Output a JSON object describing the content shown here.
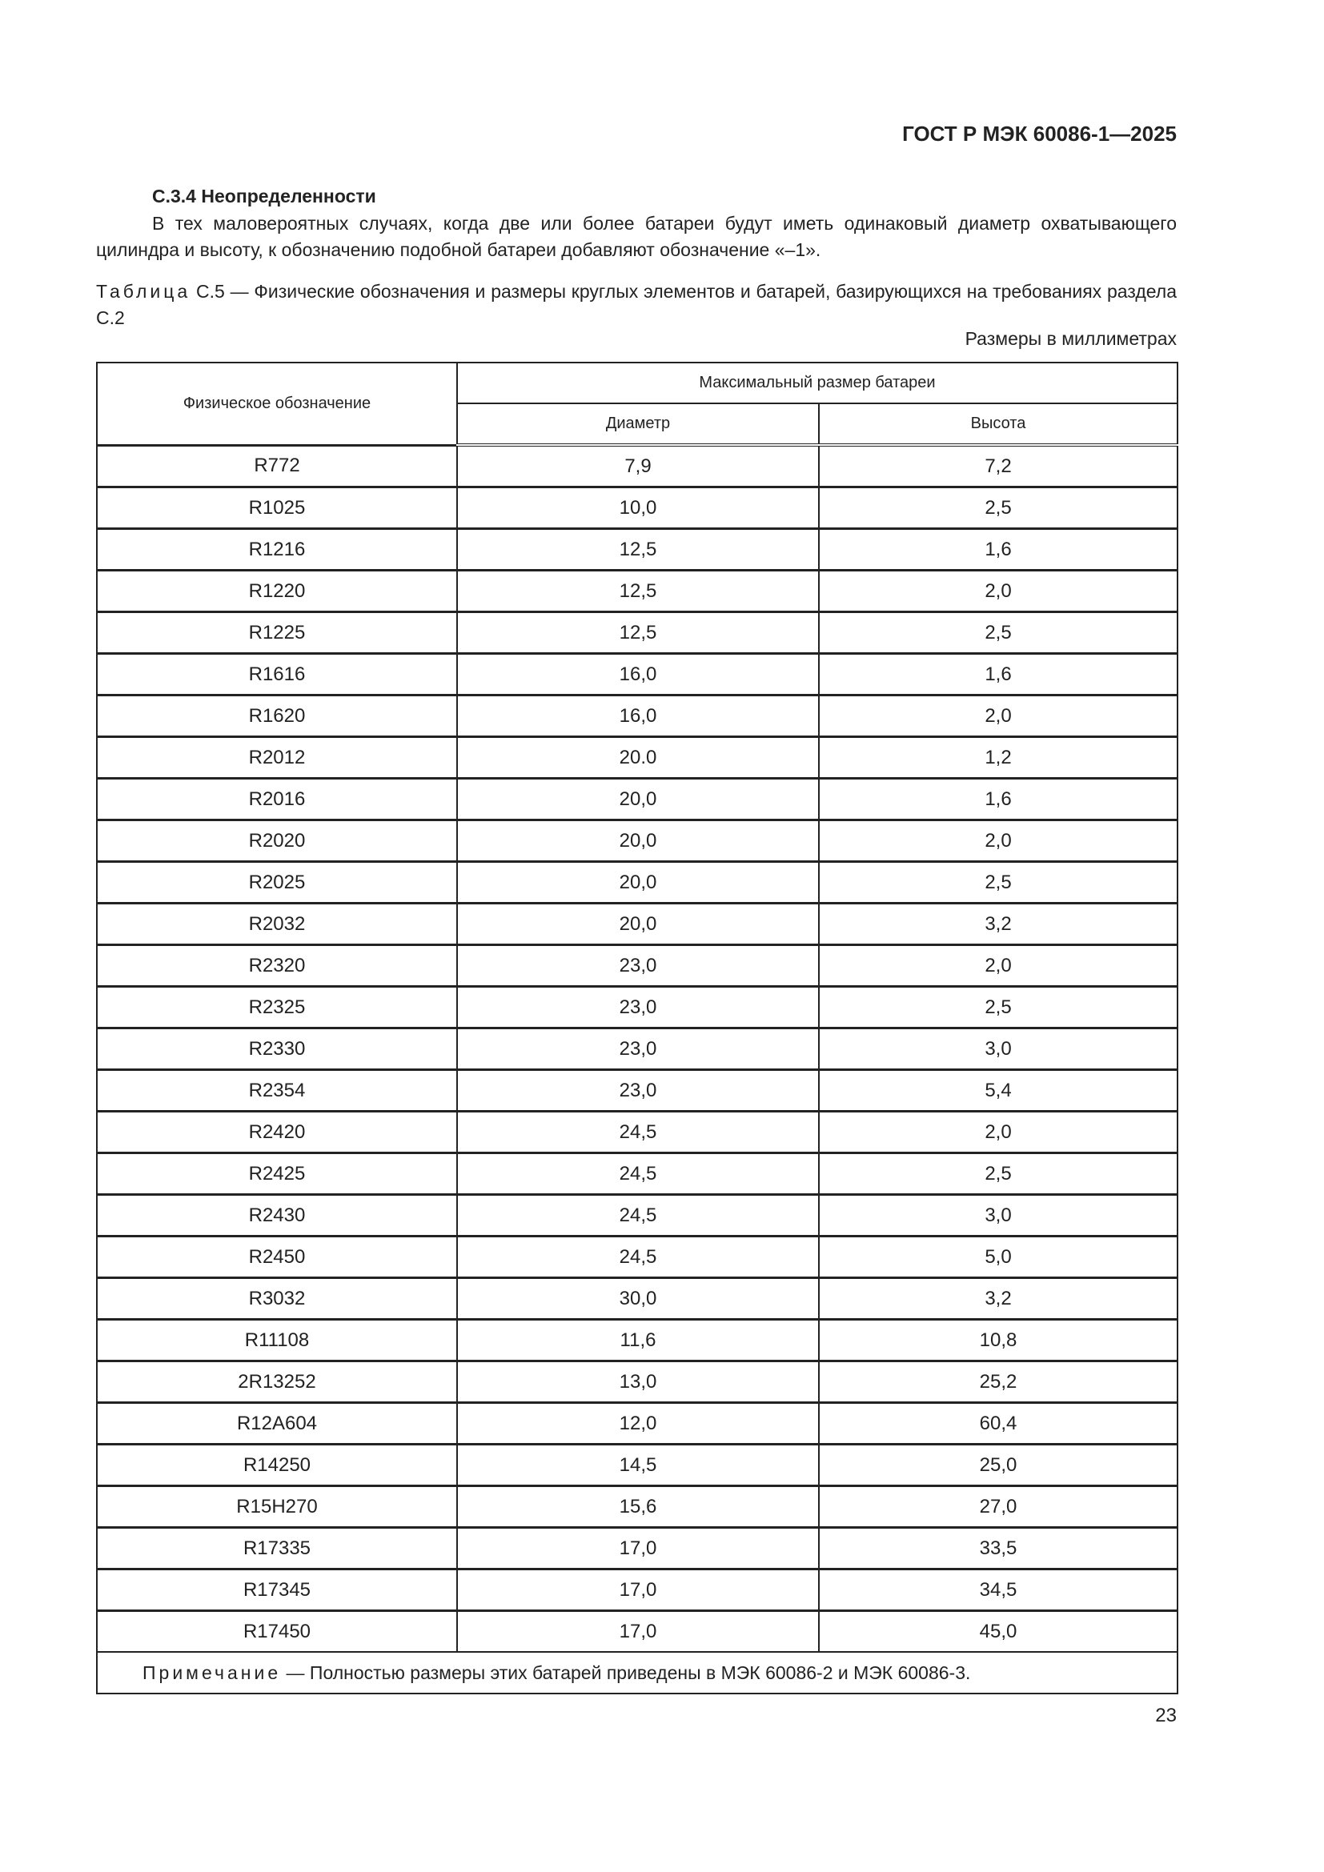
{
  "header": {
    "doc_id": "ГОСТ Р МЭК 60086-1—2025"
  },
  "section": {
    "heading": "С.3.4 Неопределенности",
    "paragraph": "В тех маловероятных случаях, когда две или более батареи будут иметь одинаковый диаметр охватывающего цилиндра и высоту, к обозначению подобной батареи добавляют обозначение «–1»."
  },
  "table": {
    "caption_label": "Таблица",
    "caption_text": "С.5 — Физические обозначения и размеры круглых элементов и батарей, базирующихся на требованиях раздела С.2",
    "units": "Размеры в миллиметрах",
    "headers": {
      "designation": "Физическое обозначение",
      "max_size": "Максимальный размер батареи",
      "diameter": "Диаметр",
      "height": "Высота"
    },
    "rows": [
      [
        "R772",
        "7,9",
        "7,2"
      ],
      [
        "R1025",
        "10,0",
        "2,5"
      ],
      [
        "R1216",
        "12,5",
        "1,6"
      ],
      [
        "R1220",
        "12,5",
        "2,0"
      ],
      [
        "R1225",
        "12,5",
        "2,5"
      ],
      [
        "R1616",
        "16,0",
        "1,6"
      ],
      [
        "R1620",
        "16,0",
        "2,0"
      ],
      [
        "R2012",
        "20.0",
        "1,2"
      ],
      [
        "R2016",
        "20,0",
        "1,6"
      ],
      [
        "R2020",
        "20,0",
        "2,0"
      ],
      [
        "R2025",
        "20,0",
        "2,5"
      ],
      [
        "R2032",
        "20,0",
        "3,2"
      ],
      [
        "R2320",
        "23,0",
        "2,0"
      ],
      [
        "R2325",
        "23,0",
        "2,5"
      ],
      [
        "R2330",
        "23,0",
        "3,0"
      ],
      [
        "R2354",
        "23,0",
        "5,4"
      ],
      [
        "R2420",
        "24,5",
        "2,0"
      ],
      [
        "R2425",
        "24,5",
        "2,5"
      ],
      [
        "R2430",
        "24,5",
        "3,0"
      ],
      [
        "R2450",
        "24,5",
        "5,0"
      ],
      [
        "R3032",
        "30,0",
        "3,2"
      ],
      [
        "R11108",
        "11,6",
        "10,8"
      ],
      [
        "2R13252",
        "13,0",
        "25,2"
      ],
      [
        "R12A604",
        "12,0",
        "60,4"
      ],
      [
        "R14250",
        "14,5",
        "25,0"
      ],
      [
        "R15H270",
        "15,6",
        "27,0"
      ],
      [
        "R17335",
        "17,0",
        "33,5"
      ],
      [
        "R17345",
        "17,0",
        "34,5"
      ],
      [
        "R17450",
        "17,0",
        "45,0"
      ]
    ],
    "note_label": "Примечание",
    "note_text": " — Полностью размеры этих батарей приведены в МЭК 60086-2 и МЭК 60086-3."
  },
  "footer": {
    "page_number": "23"
  }
}
